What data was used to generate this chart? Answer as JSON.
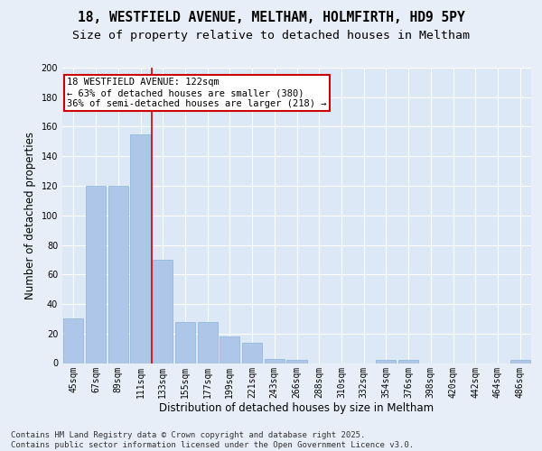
{
  "title1": "18, WESTFIELD AVENUE, MELTHAM, HOLMFIRTH, HD9 5PY",
  "title2": "Size of property relative to detached houses in Meltham",
  "xlabel": "Distribution of detached houses by size in Meltham",
  "ylabel": "Number of detached properties",
  "categories": [
    "45sqm",
    "67sqm",
    "89sqm",
    "111sqm",
    "133sqm",
    "155sqm",
    "177sqm",
    "199sqm",
    "221sqm",
    "243sqm",
    "266sqm",
    "288sqm",
    "310sqm",
    "332sqm",
    "354sqm",
    "376sqm",
    "398sqm",
    "420sqm",
    "442sqm",
    "464sqm",
    "486sqm"
  ],
  "values": [
    30,
    120,
    120,
    155,
    70,
    28,
    28,
    18,
    14,
    3,
    2,
    0,
    0,
    0,
    2,
    2,
    0,
    0,
    0,
    0,
    2
  ],
  "bar_color": "#aec6e8",
  "bar_edge_color": "#8ab4d8",
  "vline_x": 3.5,
  "vline_color": "#cc0000",
  "annotation_box_text": "18 WESTFIELD AVENUE: 122sqm\n← 63% of detached houses are smaller (380)\n36% of semi-detached houses are larger (218) →",
  "annotation_box_color": "#cc0000",
  "background_color": "#e8eef8",
  "plot_bg_color": "#dce8f5",
  "grid_color": "#ffffff",
  "ylim": [
    0,
    200
  ],
  "yticks": [
    0,
    20,
    40,
    60,
    80,
    100,
    120,
    140,
    160,
    180,
    200
  ],
  "footnote": "Contains HM Land Registry data © Crown copyright and database right 2025.\nContains public sector information licensed under the Open Government Licence v3.0.",
  "title_fontsize": 10.5,
  "subtitle_fontsize": 9.5,
  "axis_label_fontsize": 8.5,
  "tick_fontsize": 7,
  "footnote_fontsize": 6.5,
  "ann_fontsize": 7.5
}
